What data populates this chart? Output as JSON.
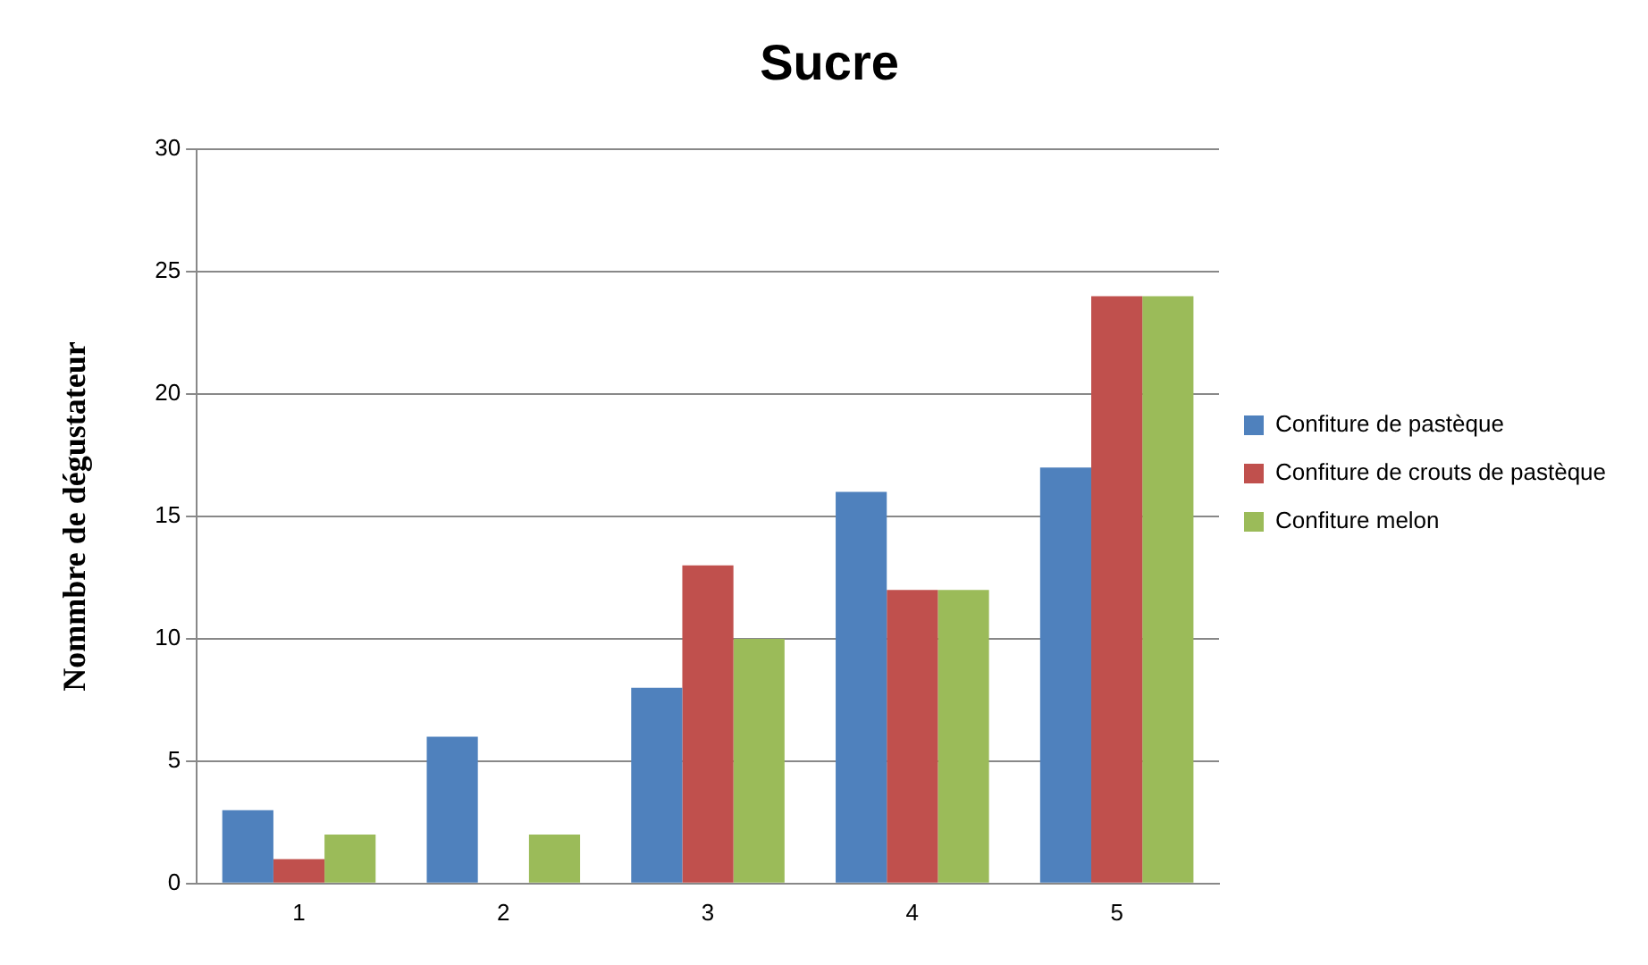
{
  "chart_data": {
    "type": "bar",
    "title": "Sucre",
    "ylabel": "Nommbre de dégustateur",
    "categories": [
      "1",
      "2",
      "3",
      "4",
      "5"
    ],
    "series": [
      {
        "name": "Confiture de pastèque",
        "color": "#4f81bd",
        "values": [
          3,
          6,
          8,
          16,
          17
        ]
      },
      {
        "name": "Confiture de crouts de pastèque",
        "color": "#c0504d",
        "values": [
          1,
          0,
          13,
          12,
          24
        ]
      },
      {
        "name": "Confiture melon",
        "color": "#9bbb59",
        "values": [
          2,
          2,
          10,
          12,
          24
        ]
      }
    ],
    "ylim": [
      0,
      30
    ],
    "yticks": [
      0,
      5,
      10,
      15,
      20,
      25,
      30
    ],
    "grid": "y",
    "legend": "right"
  }
}
